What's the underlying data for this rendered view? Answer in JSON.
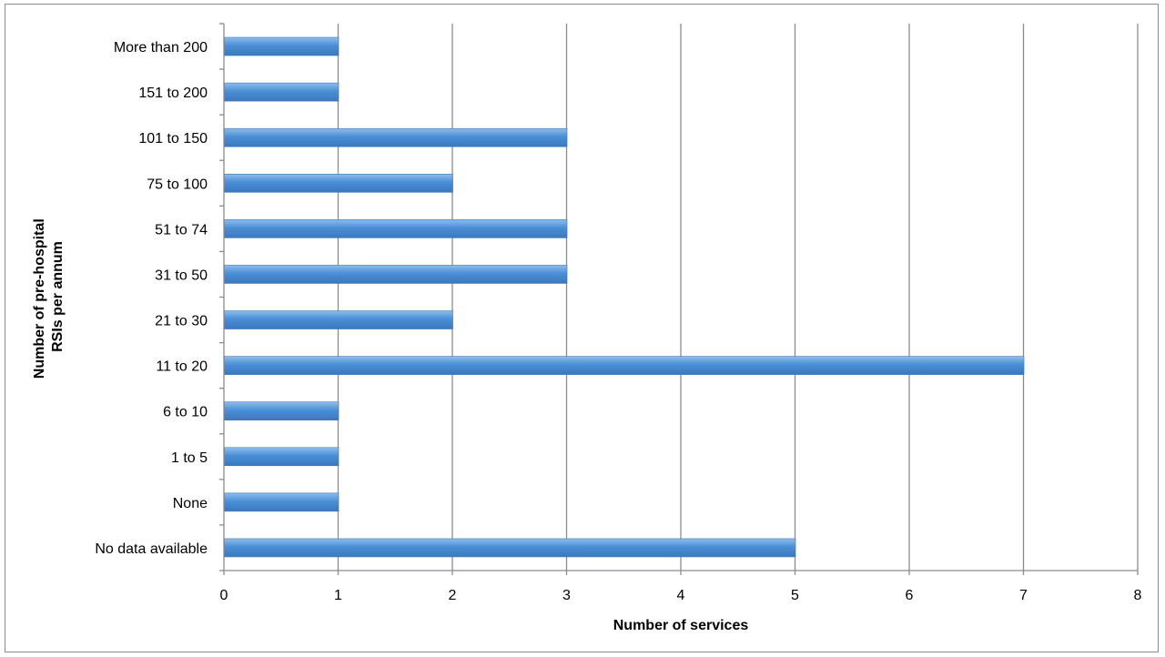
{
  "chart_data": {
    "type": "bar",
    "orientation": "horizontal",
    "categories": [
      "No data available",
      "None",
      "1 to 5",
      "6 to 10",
      "11 to 20",
      "21 to 30",
      "31 to 50",
      "51 to 74",
      "75 to 100",
      "101 to 150",
      "151 to 200",
      "More than 200"
    ],
    "values": [
      5,
      1,
      1,
      1,
      7,
      2,
      3,
      3,
      2,
      3,
      1,
      1
    ],
    "xlabel": "Number of services",
    "ylabel_lines": [
      "Number of pre-hospital",
      "RSIs per annum"
    ],
    "xlim": [
      0,
      8
    ],
    "xticks": [
      "0",
      "1",
      "2",
      "3",
      "4",
      "5",
      "6",
      "7",
      "8"
    ],
    "grid": "vertical",
    "legend": "none",
    "colors": {
      "bar": "#4a8fd6",
      "bar_light": "#8ebdec",
      "bar_dark": "#3b78bd",
      "grid": "#8c8c8c",
      "axis": "#8c8c8c"
    }
  }
}
